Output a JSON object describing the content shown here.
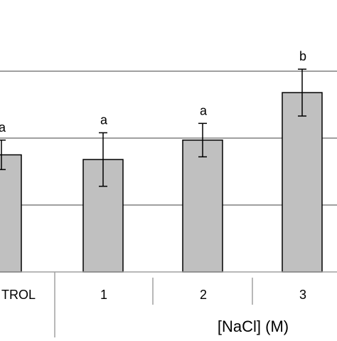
{
  "chart_data": {
    "type": "bar",
    "categories": [
      "TROL",
      "1",
      "2",
      "3"
    ],
    "values": [
      1.75,
      1.68,
      1.97,
      2.68
    ],
    "errors": [
      0.22,
      0.4,
      0.25,
      0.35
    ],
    "significance_letters": [
      "a",
      "a",
      "a",
      "b"
    ],
    "group_label": "[NaCl] (M)",
    "ylim": [
      0,
      4
    ],
    "gridlines": [
      1,
      2,
      3
    ],
    "grid": true,
    "xlabel": "",
    "ylabel": "",
    "title": ""
  },
  "colors": {
    "bar_fill": "#c0c0c0",
    "bar_stroke": "#000000",
    "grid": "#808080",
    "axis_divider": "#a0a0a0"
  }
}
